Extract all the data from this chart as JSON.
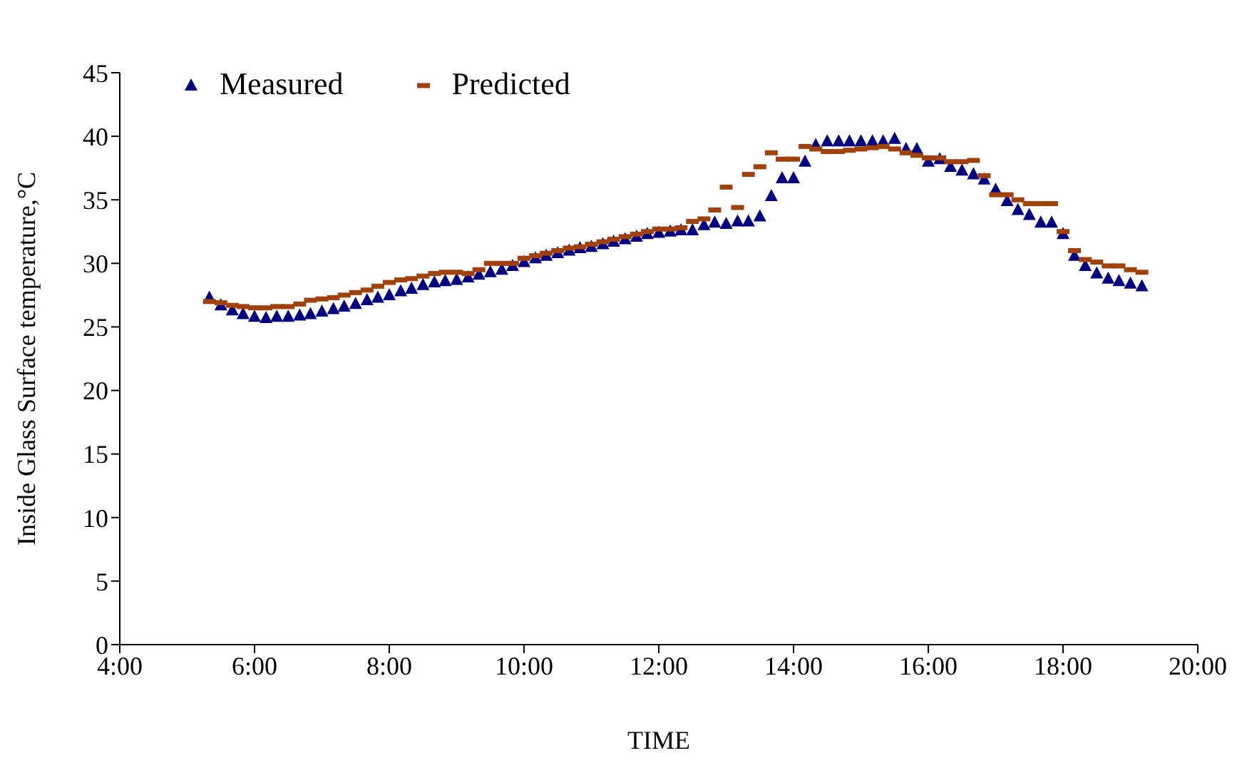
{
  "chart_data": {
    "type": "scatter",
    "xlabel": "TIME",
    "ylabel": "Inside Glass Surface temperature,°C",
    "x": [
      5.33,
      5.5,
      5.67,
      5.83,
      6.0,
      6.17,
      6.33,
      6.5,
      6.67,
      6.83,
      7.0,
      7.17,
      7.33,
      7.5,
      7.67,
      7.83,
      8.0,
      8.17,
      8.33,
      8.5,
      8.67,
      8.83,
      9.0,
      9.17,
      9.33,
      9.5,
      9.67,
      9.83,
      10.0,
      10.17,
      10.33,
      10.5,
      10.67,
      10.83,
      11.0,
      11.17,
      11.33,
      11.5,
      11.67,
      11.83,
      12.0,
      12.17,
      12.33,
      12.5,
      12.67,
      12.83,
      13.0,
      13.17,
      13.33,
      13.5,
      13.67,
      13.83,
      14.0,
      14.17,
      14.33,
      14.5,
      14.67,
      14.83,
      15.0,
      15.17,
      15.33,
      15.5,
      15.67,
      15.83,
      16.0,
      16.17,
      16.33,
      16.5,
      16.67,
      16.83,
      17.0,
      17.17,
      17.33,
      17.5,
      17.67,
      17.83,
      18.0,
      18.17,
      18.33,
      18.5,
      18.67,
      18.83,
      19.0,
      19.17
    ],
    "series": [
      {
        "name": "Measured",
        "color": "#000080",
        "marker": "triangle",
        "values": [
          27.3,
          26.7,
          26.3,
          26.0,
          25.8,
          25.7,
          25.8,
          25.8,
          25.9,
          26.0,
          26.2,
          26.4,
          26.6,
          26.8,
          27.1,
          27.3,
          27.5,
          27.8,
          28.0,
          28.3,
          28.5,
          28.6,
          28.7,
          28.9,
          29.1,
          29.3,
          29.5,
          29.8,
          30.1,
          30.4,
          30.6,
          30.8,
          31.0,
          31.2,
          31.3,
          31.5,
          31.7,
          31.9,
          32.1,
          32.3,
          32.4,
          32.5,
          32.6,
          32.6,
          33.0,
          33.2,
          33.1,
          33.3,
          33.3,
          33.7,
          35.3,
          36.7,
          36.7,
          38.0,
          39.3,
          39.6,
          39.6,
          39.6,
          39.6,
          39.6,
          39.6,
          39.8,
          39.0,
          39.0,
          38.0,
          38.2,
          37.6,
          37.3,
          37.0,
          36.6,
          35.8,
          34.9,
          34.2,
          33.8,
          33.2,
          33.2,
          32.3,
          30.6,
          29.8,
          29.2,
          28.8,
          28.6,
          28.4,
          28.2
        ]
      },
      {
        "name": "Predicted",
        "color": "#a0400a",
        "values": [
          27.0,
          26.9,
          26.7,
          26.6,
          26.5,
          26.5,
          26.6,
          26.6,
          26.8,
          27.1,
          27.2,
          27.3,
          27.5,
          27.7,
          27.9,
          28.2,
          28.5,
          28.7,
          28.8,
          29.0,
          29.2,
          29.3,
          29.3,
          29.2,
          29.5,
          30.0,
          30.0,
          30.0,
          30.4,
          30.6,
          30.8,
          31.0,
          31.2,
          31.3,
          31.5,
          31.7,
          31.9,
          32.1,
          32.3,
          32.5,
          32.7,
          32.7,
          32.8,
          33.3,
          33.5,
          34.2,
          36.0,
          34.4,
          37.0,
          37.6,
          38.7,
          38.2,
          38.2,
          39.2,
          39.0,
          38.8,
          38.8,
          38.9,
          39.0,
          39.1,
          39.2,
          39.0,
          38.7,
          38.5,
          38.3,
          38.3,
          38.0,
          38.0,
          38.1,
          36.9,
          35.4,
          35.4,
          35.0,
          34.7,
          34.7,
          34.7,
          32.5,
          31.0,
          30.3,
          30.1,
          29.8,
          29.8,
          29.5,
          29.3
        ]
      }
    ],
    "xlim": [
      4,
      20
    ],
    "xticks": [
      {
        "value": 4,
        "label": "4:00"
      },
      {
        "value": 6,
        "label": "6:00"
      },
      {
        "value": 8,
        "label": "8:00"
      },
      {
        "value": 10,
        "label": "10:00"
      },
      {
        "value": 12,
        "label": "12:00"
      },
      {
        "value": 14,
        "label": "14:00"
      },
      {
        "value": 16,
        "label": "16:00"
      },
      {
        "value": 18,
        "label": "18:00"
      },
      {
        "value": 20,
        "label": "20:00"
      }
    ],
    "ylim": [
      0,
      45
    ],
    "yticks": [
      0,
      5,
      10,
      15,
      20,
      25,
      30,
      35,
      40,
      45
    ],
    "grid": false,
    "legend": "top left"
  }
}
